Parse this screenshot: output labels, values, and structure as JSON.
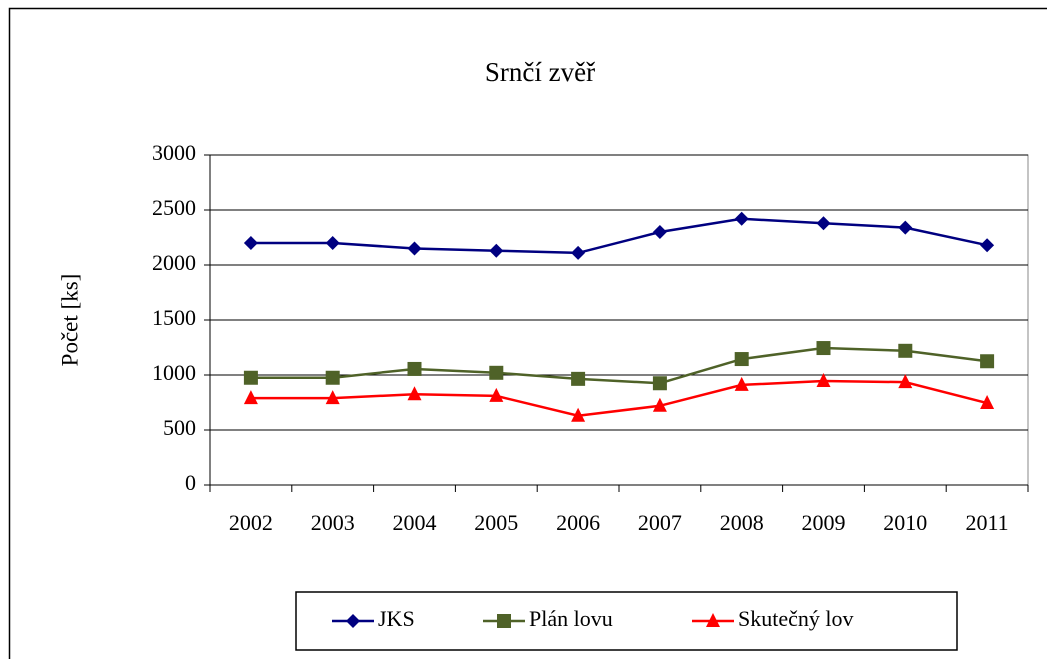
{
  "chart_data": {
    "type": "line",
    "title": "Srnčí zvěř",
    "ylabel": "Počet [ks]",
    "categories": [
      "2002",
      "2003",
      "2004",
      "2005",
      "2006",
      "2007",
      "2008",
      "2009",
      "2010",
      "2011"
    ],
    "series": [
      {
        "name": "JKS",
        "color": "#000080",
        "marker": "diamond",
        "values": [
          2200,
          2200,
          2150,
          2130,
          2110,
          2300,
          2420,
          2380,
          2340,
          2180
        ]
      },
      {
        "name": "Plán lovu",
        "color": "#4f6228",
        "marker": "square",
        "values": [
          975,
          975,
          1055,
          1020,
          965,
          925,
          1145,
          1245,
          1220,
          1125
        ]
      },
      {
        "name": "Skutečný lov",
        "color": "#ff0000",
        "marker": "triangle",
        "values": [
          790,
          790,
          825,
          810,
          630,
          720,
          910,
          945,
          935,
          745
        ]
      }
    ],
    "ylim": [
      0,
      3000
    ],
    "yticks": [
      0,
      500,
      1000,
      1500,
      2000,
      2500,
      3000
    ],
    "grid": true,
    "legend": "bottom"
  }
}
